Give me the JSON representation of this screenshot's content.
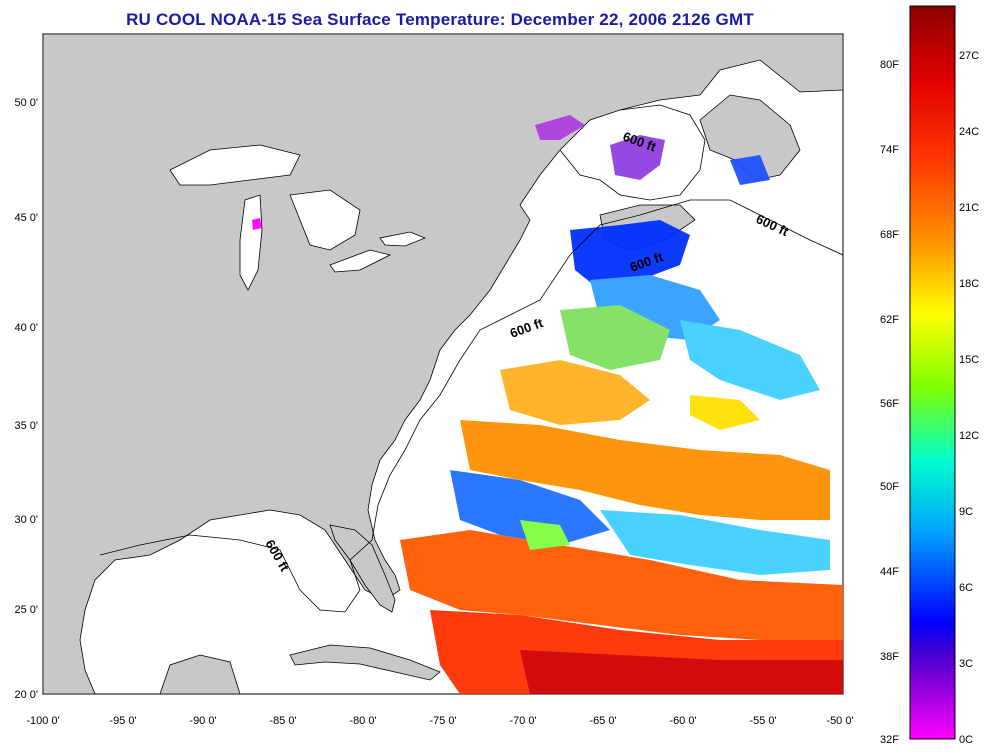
{
  "title": "RU COOL  NOAA-15  Sea Surface Temperature:  December 22, 2006 2126 GMT",
  "map": {
    "lon_range": [
      -100,
      -50
    ],
    "lat_range": [
      20,
      52.5
    ],
    "lon_ticks": [
      "-100 0'",
      "-95 0'",
      "-90 0'",
      "-85 0'",
      "-80 0'",
      "-75 0'",
      "-70 0'",
      "-65 0'",
      "-60 0'",
      "-55 0'",
      "-50 0'"
    ],
    "lat_ticks": [
      "50 0'",
      "45 0'",
      "40 0'",
      "35 0'",
      "30 0'",
      "25 0'",
      "20 0'"
    ],
    "land_color": "#c8c8c8",
    "water_color": "#ffffff",
    "contour_labels": [
      "600 ft",
      "600 ft",
      "600 ft",
      "600 ft",
      "600 ft"
    ]
  },
  "colorbar": {
    "fahrenheit_labels": [
      "80F",
      "74F",
      "68F",
      "62F",
      "56F",
      "50F",
      "44F",
      "38F",
      "32F"
    ],
    "celsius_labels": [
      "27C",
      "24C",
      "21C",
      "18C",
      "15C",
      "12C",
      "9C",
      "6C",
      "3C",
      "0C"
    ],
    "colors": [
      "#8b0000",
      "#ff0000",
      "#ff8c00",
      "#ffff00",
      "#7fff00",
      "#00ffcc",
      "#00b0ff",
      "#0000ff",
      "#8000c0",
      "#ff00ff"
    ]
  }
}
